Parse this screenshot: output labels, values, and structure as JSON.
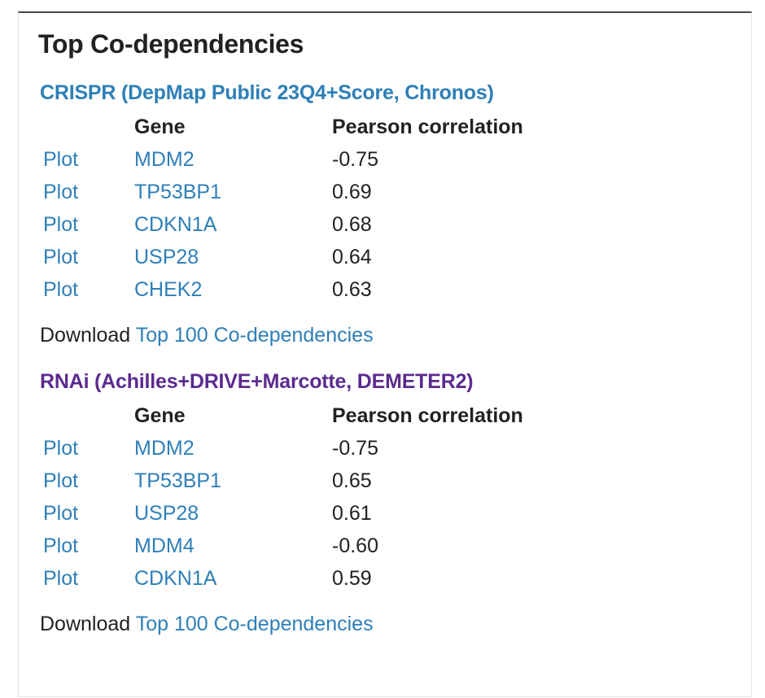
{
  "panel": {
    "title": "Top Co-dependencies"
  },
  "crispr": {
    "title": "CRISPR (DepMap Public 23Q4+Score, Chronos)",
    "columns": {
      "plot": "",
      "gene": "Gene",
      "correlation": "Pearson correlation"
    },
    "rows": [
      {
        "plot": "Plot",
        "gene": "MDM2",
        "correlation": "-0.75"
      },
      {
        "plot": "Plot",
        "gene": "TP53BP1",
        "correlation": "0.69"
      },
      {
        "plot": "Plot",
        "gene": "CDKN1A",
        "correlation": "0.68"
      },
      {
        "plot": "Plot",
        "gene": "USP28",
        "correlation": "0.64"
      },
      {
        "plot": "Plot",
        "gene": "CHEK2",
        "correlation": "0.63"
      }
    ],
    "download_prefix": "Download ",
    "download_link": "Top 100 Co-dependencies"
  },
  "rnai": {
    "title": "RNAi (Achilles+DRIVE+Marcotte, DEMETER2)",
    "columns": {
      "plot": "",
      "gene": "Gene",
      "correlation": "Pearson correlation"
    },
    "rows": [
      {
        "plot": "Plot",
        "gene": "MDM2",
        "correlation": "-0.75"
      },
      {
        "plot": "Plot",
        "gene": "TP53BP1",
        "correlation": "0.65"
      },
      {
        "plot": "Plot",
        "gene": "USP28",
        "correlation": "0.61"
      },
      {
        "plot": "Plot",
        "gene": "MDM4",
        "correlation": "-0.60"
      },
      {
        "plot": "Plot",
        "gene": "CDKN1A",
        "correlation": "0.59"
      }
    ],
    "download_prefix": "Download ",
    "download_link": "Top 100 Co-dependencies"
  },
  "colors": {
    "crispr_title": "#2e7fb8",
    "rnai_title": "#5b2b8f",
    "link": "#2e7fb8",
    "text": "#222222",
    "top_border": "#4a4a4a"
  }
}
